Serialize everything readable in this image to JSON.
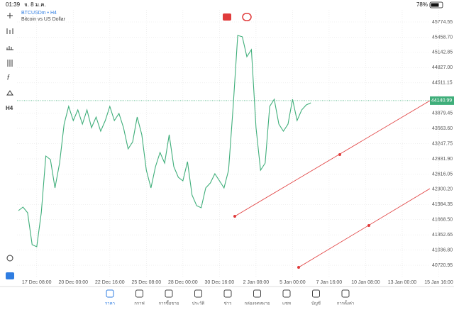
{
  "status_bar": {
    "time": "01:39",
    "date": "จ. 8 ม.ค.",
    "battery": "78%"
  },
  "header": {
    "symbol": "BTCUSDm • H4",
    "description": "Bitcoin vs US Dollar"
  },
  "toolbar": {
    "timeframe": "H4"
  },
  "chart_data": {
    "type": "line",
    "color": "#3fae7a",
    "values": [
      41857,
      41930,
      41812,
      41149,
      41105,
      41812,
      42990,
      42917,
      42328,
      42843,
      43653,
      44022,
      43727,
      43948,
      43653,
      43948,
      43580,
      43801,
      43506,
      43727,
      44022,
      43727,
      43874,
      43580,
      43138,
      43285,
      43801,
      43433,
      42696,
      42328,
      42770,
      43064,
      42843,
      43433,
      42770,
      42549,
      42475,
      42873,
      42181,
      41960,
      41915,
      42328,
      42431,
      42622,
      42475,
      42328,
      42696,
      44022,
      45495,
      45466,
      45053,
      45200,
      43580,
      42696,
      42843,
      44022,
      44169,
      43653,
      43506,
      43653,
      44169,
      43727,
      43948,
      44051,
      44095
    ],
    "last_price": 44140.99,
    "ylim": [
      40457,
      46025
    ],
    "yticks": [
      45774.55,
      {
        "value": 45458.7,
        "label": "45458.70"
      },
      45142.85,
      {
        "value": 44827,
        "label": "44827.00"
      },
      44511.15,
      43879.45,
      {
        "value": 43563.6,
        "label": "43563.60"
      },
      43247.75,
      {
        "value": 42931.9,
        "label": "42931.90"
      },
      42616.05,
      {
        "value": 42300.2,
        "label": "42300.20"
      },
      41984.35,
      {
        "value": 41668.5,
        "label": "41668.50"
      },
      41352.65,
      {
        "value": 41036.8,
        "label": "41036.80"
      },
      40720.95
    ],
    "xtick_labels": [
      "17 Dec 08:00",
      "20 Dec 00:00",
      "22 Dec 16:00",
      "25 Dec 08:00",
      "28 Dec 00:00",
      "30 Dec 16:00",
      "2 Jan 08:00",
      "5 Jan 00:00",
      "7 Jan 16:00",
      "10 Jan 08:00",
      "13 Jan 00:00",
      "15 Jan 16:00"
    ],
    "grid": true
  },
  "tabs": [
    "ราคา",
    "กราฟ",
    "การซื้อขาย",
    "ประวัติ",
    "ข่าว",
    "กล่องจดหมาย",
    "แชท",
    "บัญชี",
    "การตั้งค่า"
  ]
}
